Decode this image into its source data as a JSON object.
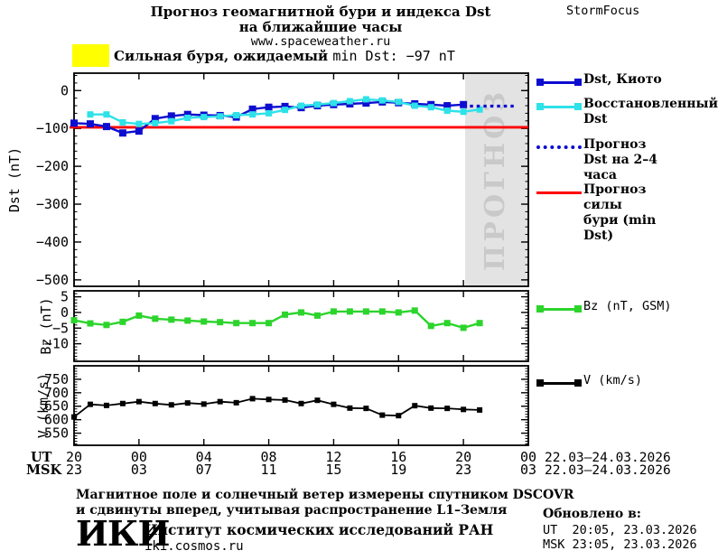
{
  "header": {
    "title_line1": "Прогноз геомагнитной бури и индекса Dst",
    "title_line2": "на ближайшие часы",
    "website": "www.spaceweather.ru",
    "brand": "StormFocus"
  },
  "alert": {
    "text_ru": "Сильная буря, ожидаемый ",
    "text_value": "min Dst: −97 nT",
    "box_color": "#ffff00"
  },
  "legend": {
    "items": [
      {
        "label": "Dst, Киото",
        "color": "#0d0dd0",
        "style": "solid-squares"
      },
      {
        "label": "Восстановленный Dst",
        "color": "#2de2e8",
        "style": "solid-squares"
      },
      {
        "label": "Прогноз Dst на 2–4 часа",
        "color": "#0d0dd0",
        "style": "dotted"
      },
      {
        "label": "Прогноз силы бури (min Dst)",
        "color": "#ff0000",
        "style": "solid"
      }
    ]
  },
  "legend_bz": {
    "label": "Bz (nT, GSM)",
    "color": "#2cd42c",
    "style": "solid-squares"
  },
  "legend_v": {
    "label": "V (km/s)",
    "color": "#000000",
    "style": "solid-squares"
  },
  "xaxis": {
    "row1_label": "UT",
    "row2_label": "MSK",
    "tick_hours": [
      0,
      4,
      8,
      12,
      16,
      20,
      24,
      28
    ],
    "row1_ticks": [
      "20",
      "00",
      "04",
      "08",
      "12",
      "16",
      "20",
      "00"
    ],
    "row2_ticks": [
      "23",
      "03",
      "07",
      "11",
      "15",
      "19",
      "23",
      "03"
    ],
    "row1_date": "22.03–24.03.2026",
    "row2_date": "22.03–24.03.2026"
  },
  "footer": {
    "note_line1": "Магнитное поле и солнечный ветер измерены спутником DSCOVR",
    "note_line2": "и сдвинуты вперед, учитывая распространение L1–Земля",
    "logo_text": "ИКИ",
    "institute": "Институт космических исследований РАН",
    "institute_site": "iki.cosmos.ru",
    "updated_label": "Обновлено в:",
    "updated_ut": "UT  20:05, 23.03.2026",
    "updated_msk": "MSK 23:05, 23.03.2026"
  },
  "chart_data": [
    {
      "id": "dst",
      "type": "line",
      "ylabel": "Dst (nT)",
      "ylim": [
        46,
        -517
      ],
      "xlim_hours": [
        0,
        28
      ],
      "minor_tick_step": 20,
      "yticks": [
        {
          "v": 0,
          "label": "0"
        },
        {
          "v": -100,
          "label": "−100"
        },
        {
          "v": -200,
          "label": "−200"
        },
        {
          "v": -300,
          "label": "−300"
        },
        {
          "v": -400,
          "label": "−400"
        },
        {
          "v": -500,
          "label": "−500"
        }
      ],
      "threshold": {
        "value": -97,
        "color": "#ff0000",
        "name": "Прогноз силы бури (min Dst)"
      },
      "forecast_region": {
        "start_hour": 24.1,
        "end_hour": 28,
        "fill": "#e3e3e3",
        "label": "ПРОГНОЗ",
        "label_color": "#c9c9c9"
      },
      "series": [
        {
          "name": "Dst, Киото",
          "color": "#0d0dd0",
          "marker": "square",
          "marker_size": 8,
          "line_width": 2.4,
          "x": [
            0,
            1,
            2,
            3,
            4,
            5,
            6,
            7,
            8,
            9,
            10,
            11,
            12,
            13,
            14,
            15,
            16,
            17,
            18,
            19,
            20,
            21,
            22,
            23,
            24
          ],
          "values": [
            -86,
            -88,
            -95,
            -112,
            -107,
            -74,
            -67,
            -63,
            -65,
            -66,
            -70,
            -49,
            -44,
            -42,
            -45,
            -40,
            -37,
            -35,
            -33,
            -30,
            -32,
            -35,
            -37,
            -40,
            -37
          ]
        },
        {
          "name": "Восстановленный Dst",
          "color": "#2de2e8",
          "marker": "square",
          "marker_size": 7,
          "line_width": 2.4,
          "x": [
            1,
            2,
            3,
            4,
            5,
            6,
            7,
            8,
            9,
            10,
            11,
            12,
            13,
            14,
            15,
            16,
            17,
            18,
            19,
            20,
            21,
            22,
            23,
            24,
            25
          ],
          "values": [
            -63,
            -63,
            -84,
            -88,
            -86,
            -81,
            -72,
            -70,
            -68,
            -65,
            -63,
            -60,
            -51,
            -40,
            -37,
            -33,
            -28,
            -23,
            -26,
            -30,
            -40,
            -44,
            -53,
            -56,
            -50
          ]
        },
        {
          "name": "Прогноз Dst на 2–4 часа",
          "color": "#0d0dd0",
          "dash": "3.5 4",
          "line_width": 3.2,
          "x": [
            24.4,
            27.3
          ],
          "values": [
            -41,
            -41
          ]
        }
      ]
    },
    {
      "id": "bz",
      "type": "line",
      "ylabel": "Bz (nT)",
      "ylim": [
        6.9,
        -15.6
      ],
      "xlim_hours": [
        0,
        28
      ],
      "minor_tick_step": 1,
      "yticks": [
        {
          "v": 5,
          "label": "5"
        },
        {
          "v": 0,
          "label": "0"
        },
        {
          "v": -5,
          "label": "−5"
        },
        {
          "v": -10,
          "label": "−10"
        }
      ],
      "series": [
        {
          "name": "Bz (nT, GSM)",
          "color": "#2cd42c",
          "marker": "square",
          "marker_size": 7,
          "line_width": 2.4,
          "x": [
            0,
            1,
            2,
            3,
            4,
            5,
            6,
            7,
            8,
            9,
            10,
            11,
            12,
            13,
            14,
            15,
            16,
            17,
            18,
            19,
            20,
            21,
            22,
            23,
            24,
            25
          ],
          "values": [
            -2.5,
            -3.5,
            -4,
            -3,
            -1,
            -2,
            -2.3,
            -2.6,
            -2.9,
            -3.1,
            -3.4,
            -3.4,
            -3.4,
            -0.7,
            0,
            -1,
            0.3,
            0.3,
            0.3,
            0.3,
            0,
            0.6,
            -4.3,
            -3.4,
            -4.9,
            -3.4
          ]
        }
      ]
    },
    {
      "id": "v",
      "type": "line",
      "ylabel": "V (km/s)",
      "ylim": [
        800,
        505
      ],
      "xlim_hours": [
        0,
        28
      ],
      "minor_tick_step": 10,
      "yticks": [
        {
          "v": 750,
          "label": "750"
        },
        {
          "v": 700,
          "label": "700"
        },
        {
          "v": 650,
          "label": "650"
        },
        {
          "v": 600,
          "label": "600"
        },
        {
          "v": 550,
          "label": "550"
        }
      ],
      "series": [
        {
          "name": "V (km/s)",
          "color": "#000000",
          "marker": "square",
          "marker_size": 6,
          "line_width": 1.8,
          "x": [
            0,
            1,
            2,
            3,
            4,
            5,
            6,
            7,
            8,
            9,
            10,
            11,
            12,
            13,
            14,
            15,
            16,
            17,
            18,
            19,
            20,
            21,
            22,
            23,
            24,
            25
          ],
          "values": [
            610,
            657,
            653,
            660,
            667,
            660,
            655,
            662,
            658,
            667,
            663,
            678,
            675,
            673,
            660,
            672,
            657,
            643,
            642,
            617,
            615,
            652,
            643,
            642,
            638,
            636
          ]
        }
      ]
    }
  ]
}
